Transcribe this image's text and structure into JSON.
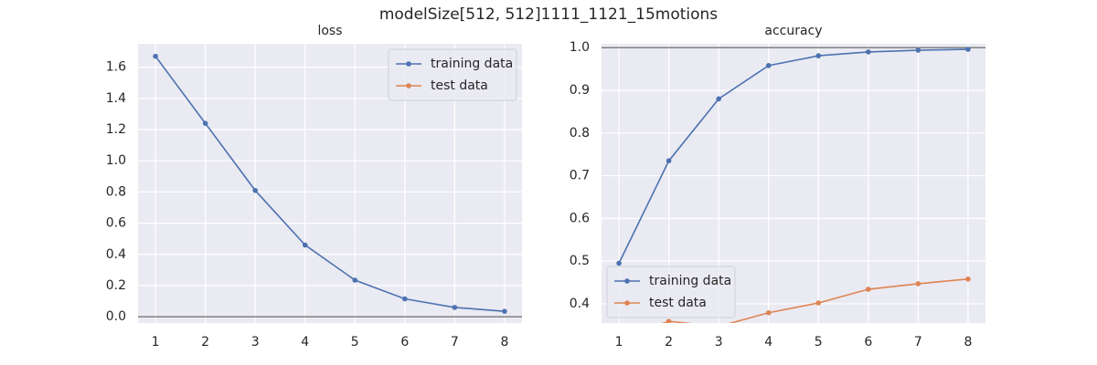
{
  "title": "modelSize[512, 512]1111_1121_15motions",
  "chart_data": [
    {
      "type": "line",
      "title": "loss",
      "x": [
        1,
        2,
        3,
        4,
        5,
        6,
        7,
        8
      ],
      "series": [
        {
          "name": "training data",
          "color": "#4c72b0",
          "values": [
            1.67,
            1.24,
            0.81,
            0.46,
            0.235,
            0.115,
            0.06,
            0.035
          ]
        },
        {
          "name": "test data",
          "color": "#dd8452",
          "values": [
            null,
            null,
            null,
            null,
            null,
            null,
            null,
            null
          ]
        }
      ],
      "xlim": [
        0.65,
        8.35
      ],
      "xticks": [
        1,
        2,
        3,
        4,
        5,
        6,
        7,
        8
      ],
      "ylim": [
        -0.04,
        1.75
      ],
      "yticks": [
        {
          "value": 0,
          "label": "0.0"
        },
        0.2,
        0.4,
        0.6,
        0.8,
        {
          "value": 1,
          "label": "1.0"
        },
        1.2,
        1.4,
        1.6
      ],
      "hline": 0,
      "hline_color": "#808080",
      "grid": true,
      "legend": "upper right"
    },
    {
      "type": "line",
      "title": "accuracy",
      "x": [
        1,
        2,
        3,
        4,
        5,
        6,
        7,
        8
      ],
      "series": [
        {
          "name": "training data",
          "color": "#4c72b0",
          "values": [
            0.495,
            0.735,
            0.88,
            0.958,
            0.981,
            0.99,
            0.994,
            0.996
          ]
        },
        {
          "name": "test data",
          "color": "#dd8452",
          "values": [
            0.32,
            0.359,
            0.347,
            0.379,
            0.402,
            0.434,
            0.447,
            0.458
          ]
        }
      ],
      "xlim": [
        0.65,
        8.35
      ],
      "xticks": [
        1,
        2,
        3,
        4,
        5,
        6,
        7,
        8
      ],
      "ylim": [
        0.355,
        1.009
      ],
      "yticks": [
        0.4,
        0.5,
        0.6,
        0.7,
        0.8,
        0.9,
        {
          "value": 1,
          "label": "1.0"
        }
      ],
      "hline": 1,
      "hline_color": "#808080",
      "grid": true,
      "legend": "lower left"
    }
  ]
}
